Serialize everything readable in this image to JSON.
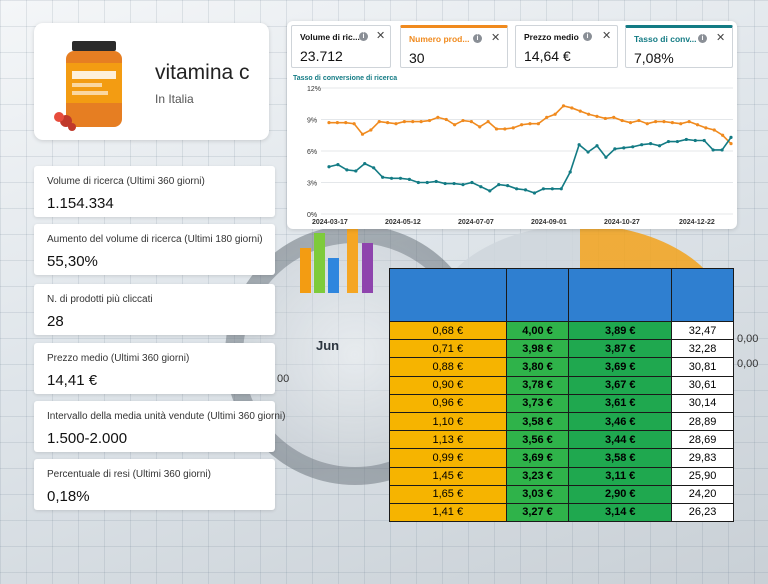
{
  "product": {
    "name": "vitamina c",
    "country": "In Italia",
    "image_icon": "supplement-bottle-icon"
  },
  "stats": [
    {
      "label": "Volume di ricerca (Ultimi 360 giorni)",
      "value": "1.154.334"
    },
    {
      "label": "Aumento del volume di ricerca (Ultimi 180 giorni)",
      "value": "55,30%"
    },
    {
      "label": "N. di prodotti più cliccati",
      "value": "28"
    },
    {
      "label": "Prezzo medio (Ultimi 360 giorni)",
      "value": "14,41 €"
    },
    {
      "label": "Intervallo della media unità vendute (Ultimi 360 giorni)",
      "value": "1.500-2.000"
    },
    {
      "label": "Percentuale di resi (Ultimi 360 giorni)",
      "value": "0,18%"
    }
  ],
  "metrics": [
    {
      "title": "Volume di ricerca",
      "title_shown": "Volume di ric...",
      "value": "23.712",
      "accent": "none"
    },
    {
      "title": "Numero prodotti",
      "title_shown": "Numero prod...",
      "value": "30",
      "accent": "#f08a1e"
    },
    {
      "title": "Prezzo medio",
      "title_shown": "Prezzo medio",
      "value": "14,64 €",
      "accent": "none"
    },
    {
      "title": "Tasso di conversione",
      "title_shown": "Tasso di conv...",
      "value": "7,08%",
      "accent": "#137b84"
    }
  ],
  "chart_data": {
    "type": "line",
    "title": "Tasso di conversione di ricerca",
    "x_ticks": [
      "2024-03-17",
      "2024-05-12",
      "2024-07-07",
      "2024-09-01",
      "2024-10-27",
      "2024-12-22"
    ],
    "y_ticks": [
      "0%",
      "3%",
      "6%",
      "9%",
      "12%"
    ],
    "ylim": [
      0,
      12
    ],
    "grid": true,
    "series": [
      {
        "color": "#f08a1e",
        "values": [
          8.7,
          8.7,
          8.7,
          8.6,
          7.6,
          8.0,
          8.8,
          8.7,
          8.6,
          8.8,
          8.8,
          8.8,
          8.9,
          9.2,
          9.0,
          8.5,
          8.9,
          8.8,
          8.3,
          8.8,
          8.1,
          8.1,
          8.2,
          8.5,
          8.6,
          8.6,
          9.2,
          9.5,
          10.3,
          10.1,
          9.8,
          9.5,
          9.3,
          9.1,
          9.2,
          8.9,
          8.7,
          8.9,
          8.6,
          8.8,
          8.8,
          8.7,
          8.6,
          8.8,
          8.5,
          8.2,
          8.0,
          7.5,
          6.7
        ]
      },
      {
        "color": "#137b84",
        "values": [
          4.5,
          4.7,
          4.2,
          4.1,
          4.8,
          4.4,
          3.5,
          3.4,
          3.4,
          3.3,
          3.0,
          3.0,
          3.1,
          2.9,
          2.9,
          2.8,
          3.0,
          2.6,
          2.2,
          2.8,
          2.7,
          2.4,
          2.3,
          2.0,
          2.4,
          2.4,
          2.4,
          4.0,
          6.6,
          5.9,
          6.5,
          5.4,
          6.2,
          6.3,
          6.4,
          6.6,
          6.7,
          6.5,
          6.9,
          6.9,
          7.1,
          7.0,
          7.0,
          6.1,
          6.1,
          7.3
        ]
      }
    ]
  },
  "table": {
    "rows": [
      [
        "0,68 €",
        "4,00 €",
        "3,89 €",
        "32,47"
      ],
      [
        "0,71 €",
        "3,98 €",
        "3,87 €",
        "32,28"
      ],
      [
        "0,88 €",
        "3,80 €",
        "3,69 €",
        "30,81"
      ],
      [
        "0,90 €",
        "3,78 €",
        "3,67 €",
        "30,61"
      ],
      [
        "0,96 €",
        "3,73 €",
        "3,61 €",
        "30,14"
      ],
      [
        "1,10 €",
        "3,58 €",
        "3,46 €",
        "28,89"
      ],
      [
        "1,13 €",
        "3,56 €",
        "3,44 €",
        "28,69"
      ],
      [
        "0,99 €",
        "3,69 €",
        "3,58 €",
        "29,83"
      ],
      [
        "1,45 €",
        "3,23 €",
        "3,11 €",
        "25,90"
      ],
      [
        "1,65 €",
        "3,03 €",
        "2,90 €",
        "24,20"
      ],
      [
        "1,41 €",
        "3,27 €",
        "3,14 €",
        "26,23"
      ]
    ]
  },
  "background": {
    "month_label": "Jun",
    "numbers": [
      "0,00",
      "0,00",
      "00"
    ]
  }
}
